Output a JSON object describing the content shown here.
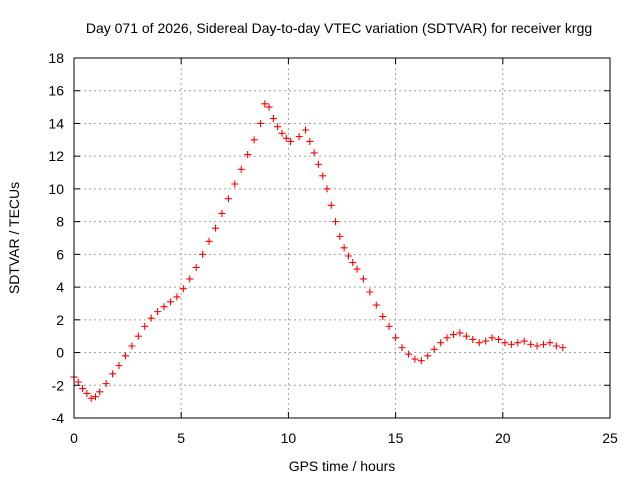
{
  "chart_data": {
    "type": "scatter",
    "title": "Day 071 of 2026, Sidereal Day-to-day VTEC variation (SDTVAR) for receiver krgg",
    "xlabel": "GPS time / hours",
    "ylabel": "SDTVAR / TECUs",
    "xlim": [
      0,
      25
    ],
    "ylim": [
      -4,
      18
    ],
    "xticks": [
      "0",
      "5",
      "10",
      "15",
      "20",
      "25"
    ],
    "yticks": [
      "-4",
      "-2",
      "0",
      "2",
      "4",
      "6",
      "8",
      "10",
      "12",
      "14",
      "16",
      "18"
    ],
    "grid": true,
    "marker": "+",
    "series": [
      {
        "name": "SDTVAR",
        "color": "#ff0000",
        "x": [
          0.0,
          0.2,
          0.4,
          0.6,
          0.8,
          1.0,
          1.2,
          1.5,
          1.8,
          2.1,
          2.4,
          2.7,
          3.0,
          3.3,
          3.6,
          3.9,
          4.2,
          4.5,
          4.8,
          5.1,
          5.4,
          5.7,
          6.0,
          6.3,
          6.6,
          6.9,
          7.2,
          7.5,
          7.8,
          8.1,
          8.4,
          8.7,
          8.9,
          9.1,
          9.3,
          9.5,
          9.7,
          9.9,
          10.1,
          10.5,
          10.8,
          11.0,
          11.2,
          11.4,
          11.6,
          11.8,
          12.0,
          12.2,
          12.4,
          12.6,
          12.8,
          13.0,
          13.2,
          13.5,
          13.8,
          14.1,
          14.4,
          14.7,
          15.0,
          15.3,
          15.6,
          15.9,
          16.2,
          16.5,
          16.8,
          17.1,
          17.4,
          17.7,
          18.0,
          18.3,
          18.6,
          18.9,
          19.2,
          19.5,
          19.8,
          20.1,
          20.4,
          20.7,
          21.0,
          21.3,
          21.6,
          21.9,
          22.2,
          22.5,
          22.8
        ],
        "values": [
          -1.5,
          -1.8,
          -2.2,
          -2.5,
          -2.8,
          -2.7,
          -2.4,
          -1.9,
          -1.3,
          -0.8,
          -0.2,
          0.4,
          1.0,
          1.6,
          2.1,
          2.5,
          2.8,
          3.1,
          3.4,
          3.9,
          4.5,
          5.2,
          6.0,
          6.8,
          7.6,
          8.5,
          9.4,
          10.3,
          11.2,
          12.1,
          13.0,
          14.0,
          15.2,
          15.0,
          14.3,
          13.8,
          13.4,
          13.1,
          12.9,
          13.2,
          13.6,
          12.9,
          12.2,
          11.5,
          10.8,
          10.0,
          9.0,
          8.0,
          7.1,
          6.4,
          5.9,
          5.5,
          5.1,
          4.5,
          3.7,
          2.9,
          2.2,
          1.6,
          0.9,
          0.3,
          -0.1,
          -0.4,
          -0.5,
          -0.2,
          0.2,
          0.6,
          0.9,
          1.1,
          1.2,
          1.0,
          0.8,
          0.6,
          0.7,
          0.9,
          0.8,
          0.6,
          0.5,
          0.6,
          0.7,
          0.5,
          0.4,
          0.5,
          0.6,
          0.4,
          0.3
        ]
      }
    ]
  }
}
